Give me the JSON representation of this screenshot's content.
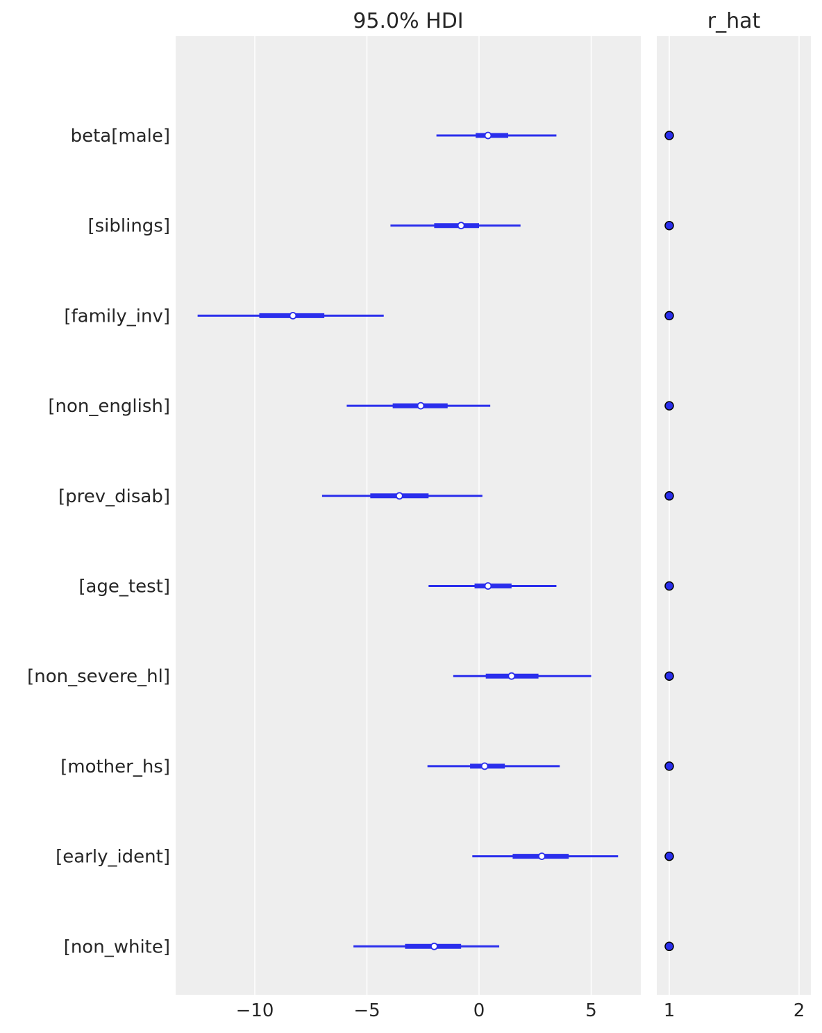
{
  "chart_data": [
    {
      "type": "forest",
      "title": "95.0% HDI",
      "xlim": [
        -13.5,
        7.2
      ],
      "xticks": [
        "−10",
        "−5",
        "0",
        "5"
      ],
      "xtick_values": [
        -10,
        -5,
        0,
        5
      ],
      "grid": true,
      "labels": [
        "beta[male]",
        "[siblings]",
        "[family_inv]",
        "[non_english]",
        "[prev_disab]",
        "[age_test]",
        "[non_severe_hl]",
        "[mother_hs]",
        "[early_ident]",
        "[non_white]"
      ],
      "hdi_low": [
        -1.9,
        -3.95,
        -12.55,
        -5.9,
        -7.0,
        -2.25,
        -1.15,
        -2.3,
        -0.3,
        -5.6
      ],
      "hdi_high": [
        3.45,
        1.85,
        -4.25,
        0.5,
        0.15,
        3.45,
        5.0,
        3.6,
        6.2,
        0.9
      ],
      "iqr_low": [
        -0.15,
        -2.0,
        -9.8,
        -3.85,
        -4.85,
        -0.2,
        0.3,
        -0.4,
        1.5,
        -3.3
      ],
      "iqr_high": [
        1.3,
        0.0,
        -6.9,
        -1.4,
        -2.25,
        1.45,
        2.65,
        1.15,
        4.0,
        -0.8
      ],
      "median": [
        0.4,
        -0.8,
        -8.3,
        -2.6,
        -3.55,
        0.4,
        1.45,
        0.25,
        2.8,
        -2.0
      ],
      "color": "#2a2eec"
    },
    {
      "type": "scatter",
      "title": "r_hat",
      "xlim": [
        0.9,
        2.09
      ],
      "xticks": [
        "1",
        "2"
      ],
      "xtick_values": [
        1,
        2
      ],
      "grid": true,
      "values": [
        1.0,
        1.0,
        1.0,
        1.0,
        1.0,
        1.0,
        1.0,
        1.0,
        1.0,
        1.0
      ],
      "color": "#2a2eec"
    }
  ],
  "colors": {
    "panel_bg": "#eeeeee",
    "grid": "#ffffff",
    "series": "#2a2eec"
  }
}
